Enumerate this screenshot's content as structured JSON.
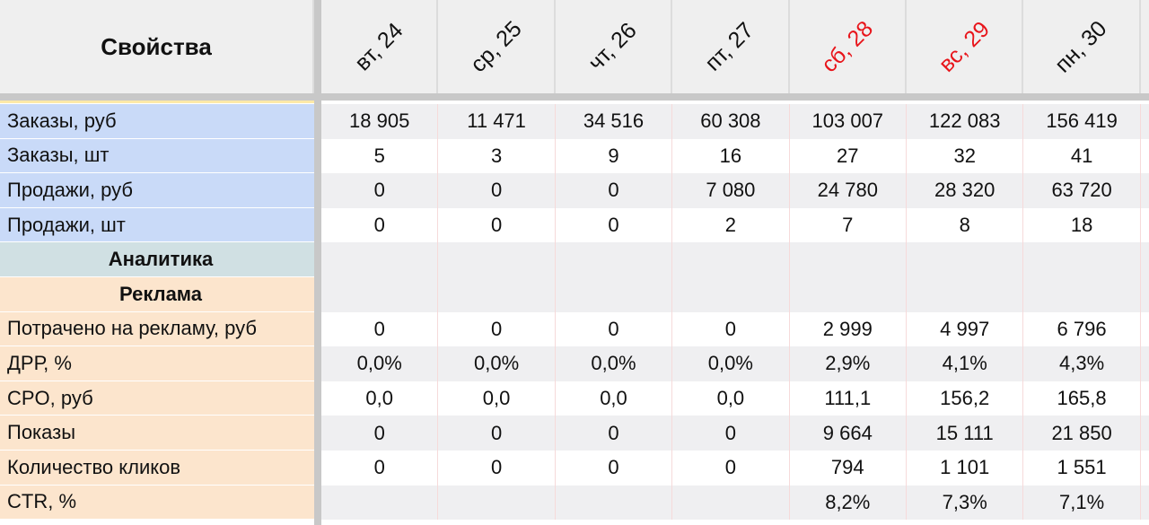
{
  "header": {
    "title": "Свойства",
    "columns": [
      {
        "label": "вт, 24",
        "weekend": false
      },
      {
        "label": "ср, 25",
        "weekend": false
      },
      {
        "label": "чт, 26",
        "weekend": false
      },
      {
        "label": "пт, 27",
        "weekend": false
      },
      {
        "label": "сб, 28",
        "weekend": true
      },
      {
        "label": "вс, 29",
        "weekend": true
      },
      {
        "label": "пн, 30",
        "weekend": false
      }
    ]
  },
  "table": {
    "rows": [
      {
        "label": "Заказы, руб",
        "cells": [
          "18 905",
          "11 471",
          "34 516",
          "60 308",
          "103 007",
          "122 083",
          "156 419"
        ]
      },
      {
        "label": "Заказы, шт",
        "cells": [
          "5",
          "3",
          "9",
          "16",
          "27",
          "32",
          "41"
        ]
      },
      {
        "label": "Продажи, руб",
        "cells": [
          "0",
          "0",
          "0",
          "7 080",
          "24 780",
          "28 320",
          "63 720"
        ]
      },
      {
        "label": "Продажи, шт",
        "cells": [
          "0",
          "0",
          "0",
          "2",
          "7",
          "8",
          "18"
        ]
      },
      {
        "label": "Аналитика",
        "section": true
      },
      {
        "label": "Реклама",
        "section": true
      },
      {
        "label": "Потрачено на рекламу, руб",
        "cells": [
          "0",
          "0",
          "0",
          "0",
          "2 999",
          "4 997",
          "6 796"
        ]
      },
      {
        "label": "ДРР, %",
        "cells": [
          "0,0%",
          "0,0%",
          "0,0%",
          "0,0%",
          "2,9%",
          "4,1%",
          "4,3%"
        ]
      },
      {
        "label": "CPO, руб",
        "cells": [
          "0,0",
          "0,0",
          "0,0",
          "0,0",
          "111,1",
          "156,2",
          "165,8"
        ]
      },
      {
        "label": "Показы",
        "cells": [
          "0",
          "0",
          "0",
          "0",
          "9 664",
          "15 111",
          "21 850"
        ]
      },
      {
        "label": "Количество кликов",
        "cells": [
          "0",
          "0",
          "0",
          "0",
          "794",
          "1 101",
          "1 551"
        ]
      },
      {
        "label": "CTR, %",
        "cells": [
          null,
          null,
          null,
          null,
          "8,2%",
          "7,3%",
          "7,1%"
        ]
      }
    ]
  }
}
